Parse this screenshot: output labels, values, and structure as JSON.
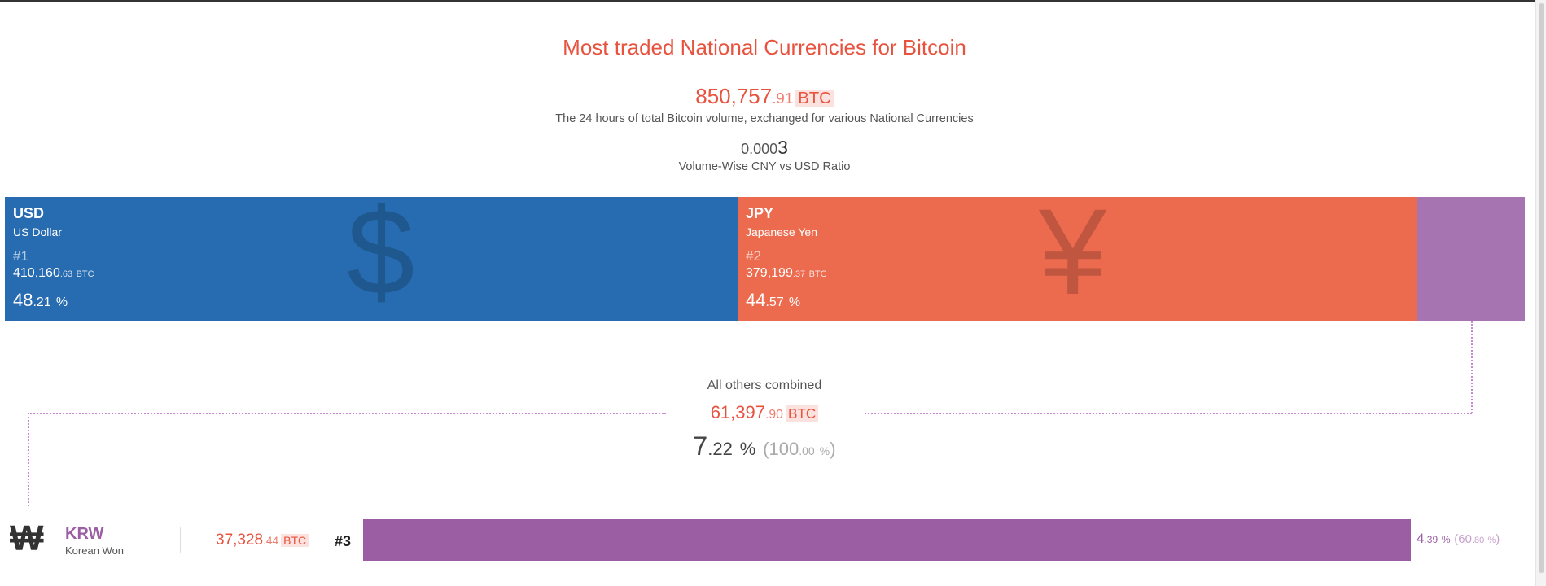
{
  "title": "Most traded National Currencies for Bitcoin",
  "total": {
    "int": "850,757",
    "dec": ".91",
    "unit": "BTC"
  },
  "total_desc": "The 24 hours of total Bitcoin volume, exchanged for various National Currencies",
  "ratio": {
    "small": "0.000",
    "big": "3",
    "label": "Volume-Wise CNY vs USD Ratio"
  },
  "currencies": [
    {
      "code": "USD",
      "name": "US Dollar",
      "rank": "#1",
      "btc_int": "410,160",
      "btc_dec": ".63",
      "btc_unit": "BTC",
      "pct_int": "48",
      "pct_dec": ".21",
      "pct_sym": "%",
      "glyph": "$",
      "color": "#276bb0"
    },
    {
      "code": "JPY",
      "name": "Japanese Yen",
      "rank": "#2",
      "btc_int": "379,199",
      "btc_dec": ".37",
      "btc_unit": "BTC",
      "pct_int": "44",
      "pct_dec": ".57",
      "pct_sym": "%",
      "glyph": "¥",
      "color": "#ec6a4e"
    }
  ],
  "others": {
    "label": "All others combined",
    "btc_int": "61,397",
    "btc_dec": ".90",
    "btc_unit": "BTC",
    "pct_int": "7",
    "pct_dec": ".22",
    "pct_sym": "%",
    "total_int": "100",
    "total_dec": ".00",
    "total_sym": "%",
    "color": "#a574b1"
  },
  "krw": {
    "icon": "₩",
    "code": "KRW",
    "name": "Korean Won",
    "btc_int": "37,328",
    "btc_dec": ".44",
    "btc_unit": "BTC",
    "rank": "#3",
    "pct_int": "4",
    "pct_dec": ".39",
    "pct_sym": "%",
    "cum_int": "60",
    "cum_dec": ".80",
    "cum_sym": "%",
    "color": "#9b5ea3"
  }
}
